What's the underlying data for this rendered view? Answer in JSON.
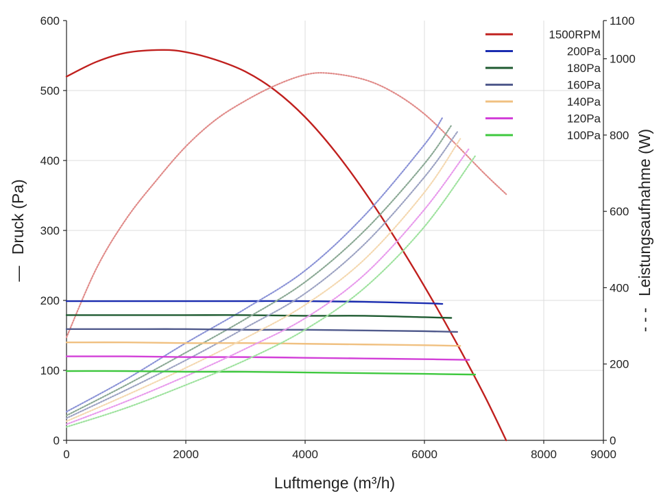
{
  "chart_data": {
    "type": "line",
    "title": "",
    "xlabel": "Luftmenge (m³/h)",
    "ylabel": "Druck (Pa)",
    "ylabel_prefix": "—",
    "y2label": "Leistungsaufnahme (W)",
    "y2label_prefix": "- - -",
    "xlim": [
      0,
      9000
    ],
    "ylim": [
      0,
      600
    ],
    "y2lim": [
      0,
      1100
    ],
    "xticks": [
      "0",
      "2000",
      "4000",
      "6000",
      "8000",
      "9000"
    ],
    "yticks": [
      "0",
      "100",
      "200",
      "300",
      "400",
      "500",
      "600"
    ],
    "y2ticks": [
      "0",
      "200",
      "400",
      "600",
      "800",
      "1000",
      "1100"
    ],
    "grid": true,
    "legend_position": "top-right",
    "series": [
      {
        "name": "1500RPM",
        "color": "#c0201e",
        "axis": "left",
        "style": "solid",
        "x": [
          0,
          500,
          1000,
          1600,
          2000,
          2500,
          3000,
          3500,
          4000,
          4500,
          5000,
          5500,
          6000,
          6500,
          7000,
          7370
        ],
        "y": [
          520,
          541,
          554,
          558,
          555,
          544,
          527,
          500,
          462,
          413,
          355,
          290,
          220,
          145,
          65,
          0
        ]
      },
      {
        "name": "1500RPM",
        "color": "#e08a88",
        "axis": "right",
        "style": "dotted",
        "x": [
          0,
          500,
          1000,
          1500,
          2000,
          2500,
          3000,
          3500,
          4000,
          4400,
          5000,
          5500,
          6000,
          6500,
          7000,
          7370
        ],
        "y": [
          270,
          450,
          580,
          680,
          770,
          840,
          890,
          930,
          958,
          962,
          945,
          910,
          855,
          780,
          700,
          645
        ]
      },
      {
        "name": "200Pa",
        "color": "#1a2cb0",
        "axis": "left",
        "style": "solid",
        "x": [
          0,
          1000,
          2000,
          3000,
          4000,
          5000,
          6000,
          6300
        ],
        "y": [
          199,
          199,
          199,
          199,
          199,
          198,
          196,
          195
        ]
      },
      {
        "name": "200Pa",
        "color": "#8a92d6",
        "axis": "right",
        "style": "dotted",
        "x": [
          0,
          1000,
          2000,
          3000,
          4000,
          5000,
          6000,
          6300
        ],
        "y": [
          75,
          160,
          255,
          345,
          445,
          590,
          775,
          845
        ]
      },
      {
        "name": "180Pa",
        "color": "#1e5a30",
        "axis": "left",
        "style": "solid",
        "x": [
          0,
          1000,
          2000,
          3000,
          4000,
          5000,
          6000,
          6450
        ],
        "y": [
          179,
          179,
          179,
          179,
          178,
          178,
          176,
          175
        ]
      },
      {
        "name": "180Pa",
        "color": "#8aa894",
        "axis": "right",
        "style": "dotted",
        "x": [
          0,
          1000,
          2000,
          3000,
          4000,
          5000,
          6000,
          6450
        ],
        "y": [
          65,
          145,
          230,
          318,
          415,
          550,
          725,
          825
        ]
      },
      {
        "name": "160Pa",
        "color": "#505a8c",
        "axis": "left",
        "style": "solid",
        "x": [
          0,
          1000,
          2000,
          3000,
          4000,
          5000,
          6000,
          6550
        ],
        "y": [
          159,
          159,
          159,
          158,
          158,
          157,
          156,
          155
        ]
      },
      {
        "name": "160Pa",
        "color": "#9ca2c2",
        "axis": "right",
        "style": "dotted",
        "x": [
          0,
          1000,
          2000,
          3000,
          4000,
          5000,
          6000,
          6550
        ],
        "y": [
          58,
          132,
          210,
          295,
          385,
          515,
          690,
          808
        ]
      },
      {
        "name": "140Pa",
        "color": "#f0c080",
        "axis": "left",
        "style": "solid",
        "x": [
          0,
          1000,
          2000,
          3000,
          4000,
          5000,
          6000,
          6600
        ],
        "y": [
          140,
          140,
          139,
          139,
          138,
          137,
          136,
          135
        ]
      },
      {
        "name": "140Pa",
        "color": "#f4d8b0",
        "axis": "right",
        "style": "dotted",
        "x": [
          0,
          1000,
          2000,
          3000,
          4000,
          5000,
          6000,
          6600
        ],
        "y": [
          50,
          118,
          190,
          268,
          355,
          475,
          650,
          790
        ]
      },
      {
        "name": "120Pa",
        "color": "#d23fd8",
        "axis": "left",
        "style": "solid",
        "x": [
          0,
          1000,
          2000,
          3000,
          4000,
          5000,
          6000,
          6750
        ],
        "y": [
          120,
          120,
          119,
          119,
          118,
          117,
          116,
          115
        ]
      },
      {
        "name": "120Pa",
        "color": "#e89aec",
        "axis": "right",
        "style": "dotted",
        "x": [
          0,
          1000,
          2000,
          3000,
          4000,
          5000,
          6000,
          6750
        ],
        "y": [
          42,
          102,
          168,
          240,
          320,
          435,
          605,
          765
        ]
      },
      {
        "name": "100Pa",
        "color": "#3ec83e",
        "axis": "left",
        "style": "solid",
        "x": [
          0,
          1000,
          2000,
          3000,
          4000,
          5000,
          6000,
          6850
        ],
        "y": [
          99,
          99,
          98,
          98,
          97,
          96,
          95,
          94
        ]
      },
      {
        "name": "100Pa",
        "color": "#9ee29e",
        "axis": "right",
        "style": "dotted",
        "x": [
          0,
          1000,
          2000,
          3000,
          4000,
          5000,
          6000,
          6850
        ],
        "y": [
          35,
          85,
          145,
          210,
          290,
          400,
          560,
          745
        ]
      }
    ]
  }
}
